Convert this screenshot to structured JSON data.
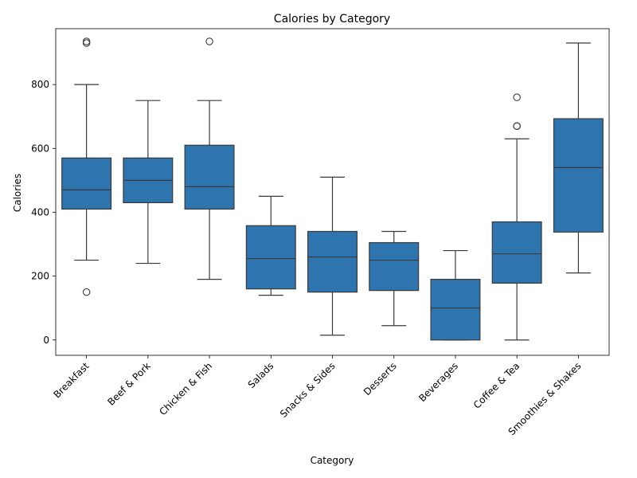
{
  "chart_data": {
    "type": "box",
    "title": "Calories by Category",
    "xlabel": "Category",
    "ylabel": "Calories",
    "ylim": [
      -48,
      975
    ],
    "yticks": [
      0,
      200,
      400,
      600,
      800
    ],
    "grid": false,
    "box_color": "#2e75b0",
    "line_color": "#3a3a3a",
    "categories": [
      "Breakfast",
      "Beef & Pork",
      "Chicken & Fish",
      "Salads",
      "Snacks & Sides",
      "Desserts",
      "Beverages",
      "Coffee & Tea",
      "Smoothies & Shakes"
    ],
    "boxes": [
      {
        "whisker_low": 250,
        "q1": 410,
        "median": 470,
        "q3": 570,
        "whisker_high": 800,
        "outliers": [
          150,
          930,
          935
        ]
      },
      {
        "whisker_low": 240,
        "q1": 430,
        "median": 500,
        "q3": 570,
        "whisker_high": 750,
        "outliers": []
      },
      {
        "whisker_low": 190,
        "q1": 410,
        "median": 480,
        "q3": 610,
        "whisker_high": 750,
        "outliers": [
          935
        ]
      },
      {
        "whisker_low": 140,
        "q1": 160,
        "median": 255,
        "q3": 358,
        "whisker_high": 450,
        "outliers": []
      },
      {
        "whisker_low": 15,
        "q1": 150,
        "median": 260,
        "q3": 340,
        "whisker_high": 510,
        "outliers": []
      },
      {
        "whisker_low": 45,
        "q1": 155,
        "median": 250,
        "q3": 305,
        "whisker_high": 340,
        "outliers": []
      },
      {
        "whisker_low": 0,
        "q1": 0,
        "median": 100,
        "q3": 190,
        "whisker_high": 280,
        "outliers": []
      },
      {
        "whisker_low": 0,
        "q1": 178,
        "median": 270,
        "q3": 370,
        "whisker_high": 630,
        "outliers": [
          670,
          670,
          760
        ]
      },
      {
        "whisker_low": 210,
        "q1": 338,
        "median": 540,
        "q3": 693,
        "whisker_high": 930,
        "outliers": []
      }
    ]
  }
}
